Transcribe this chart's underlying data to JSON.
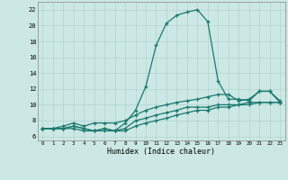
{
  "title": "",
  "xlabel": "Humidex (Indice chaleur)",
  "xlim": [
    -0.5,
    23.5
  ],
  "ylim": [
    5.5,
    23.0
  ],
  "xticks": [
    0,
    1,
    2,
    3,
    4,
    5,
    6,
    7,
    8,
    9,
    10,
    11,
    12,
    13,
    14,
    15,
    16,
    17,
    18,
    19,
    20,
    21,
    22,
    23
  ],
  "yticks": [
    6,
    8,
    10,
    12,
    14,
    16,
    18,
    20,
    22
  ],
  "bg_color": "#cce8e4",
  "grid_color_major": "#b0d4ce",
  "grid_color_minor": "#c4e0dc",
  "line_color": "#1a7870",
  "curve1_y": [
    7.0,
    7.0,
    7.0,
    7.3,
    7.0,
    6.7,
    7.0,
    6.7,
    7.7,
    9.3,
    12.3,
    17.5,
    20.3,
    21.3,
    21.7,
    22.0,
    20.5,
    13.0,
    10.7,
    10.7,
    10.5,
    11.7,
    11.7,
    10.3
  ],
  "curve2_y": [
    7.0,
    7.0,
    7.3,
    7.7,
    7.3,
    7.7,
    7.7,
    7.7,
    8.0,
    8.7,
    9.3,
    9.7,
    10.0,
    10.3,
    10.5,
    10.7,
    11.0,
    11.3,
    11.3,
    10.5,
    10.7,
    11.7,
    11.7,
    10.5
  ],
  "curve3_y": [
    7.0,
    7.0,
    7.0,
    7.3,
    7.0,
    6.7,
    7.0,
    6.7,
    7.0,
    8.0,
    8.3,
    8.7,
    9.0,
    9.3,
    9.7,
    9.7,
    9.7,
    10.0,
    10.0,
    10.0,
    10.3,
    10.3,
    10.3,
    10.3
  ],
  "curve4_y": [
    7.0,
    7.0,
    7.0,
    7.0,
    6.7,
    6.7,
    6.7,
    6.7,
    6.7,
    7.3,
    7.7,
    8.0,
    8.3,
    8.7,
    9.0,
    9.3,
    9.3,
    9.7,
    9.7,
    10.0,
    10.0,
    10.3,
    10.3,
    10.3
  ]
}
